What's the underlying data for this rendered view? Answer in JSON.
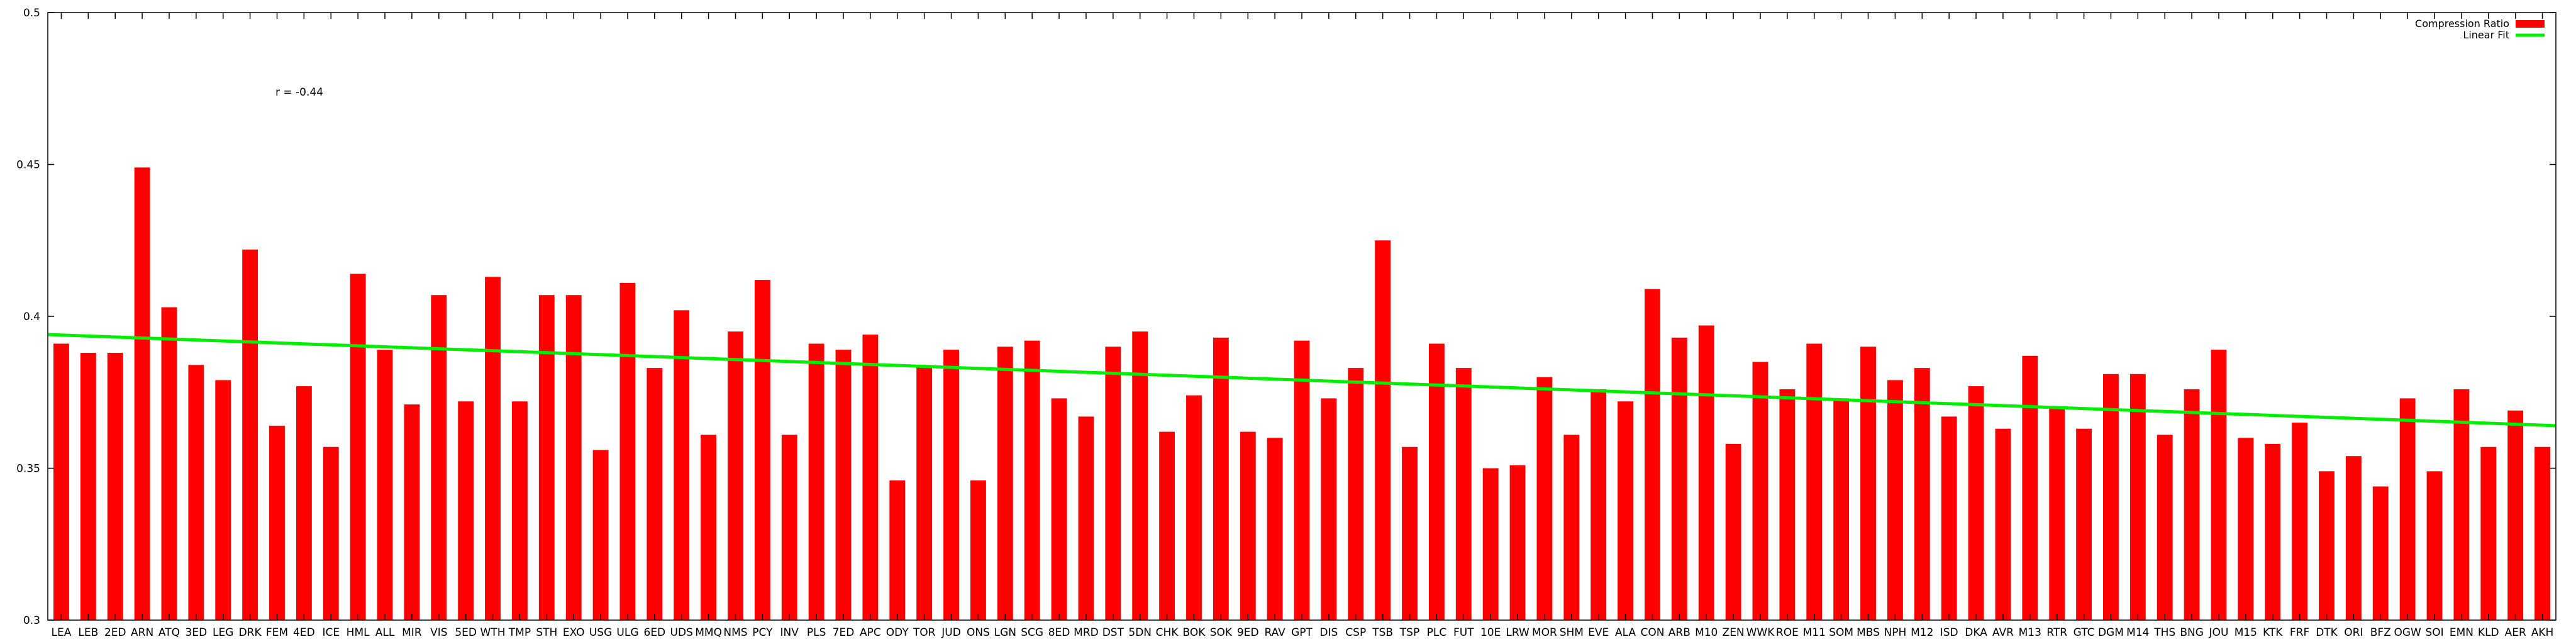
{
  "chart_data": {
    "type": "bar",
    "categories": [
      "LEA",
      "LEB",
      "2ED",
      "ARN",
      "ATQ",
      "3ED",
      "LEG",
      "DRK",
      "FEM",
      "4ED",
      "ICE",
      "HML",
      "ALL",
      "MIR",
      "VIS",
      "5ED",
      "WTH",
      "TMP",
      "STH",
      "EXO",
      "USG",
      "ULG",
      "6ED",
      "UDS",
      "MMQ",
      "NMS",
      "PCY",
      "INV",
      "PLS",
      "7ED",
      "APC",
      "ODY",
      "TOR",
      "JUD",
      "ONS",
      "LGN",
      "SCG",
      "8ED",
      "MRD",
      "DST",
      "5DN",
      "CHK",
      "BOK",
      "SOK",
      "9ED",
      "RAV",
      "GPT",
      "DIS",
      "CSP",
      "TSB",
      "TSP",
      "PLC",
      "FUT",
      "10E",
      "LRW",
      "MOR",
      "SHM",
      "EVE",
      "ALA",
      "CON",
      "ARB",
      "M10",
      "ZEN",
      "WWK",
      "ROE",
      "M11",
      "SOM",
      "MBS",
      "NPH",
      "M12",
      "ISD",
      "DKA",
      "AVR",
      "M13",
      "RTR",
      "GTC",
      "DGM",
      "M14",
      "THS",
      "BNG",
      "JOU",
      "M15",
      "KTK",
      "FRF",
      "DTK",
      "ORI",
      "BFZ",
      "OGW",
      "SOI",
      "EMN",
      "KLD",
      "AER",
      "AKH"
    ],
    "series": [
      {
        "name": "Compression Ratio",
        "color": "#ff0000",
        "values": [
          0.391,
          0.388,
          0.388,
          0.449,
          0.403,
          0.384,
          0.379,
          0.422,
          0.364,
          0.377,
          0.357,
          0.414,
          0.389,
          0.371,
          0.407,
          0.372,
          0.413,
          0.372,
          0.407,
          0.407,
          0.356,
          0.411,
          0.383,
          0.402,
          0.361,
          0.395,
          0.412,
          0.361,
          0.391,
          0.389,
          0.394,
          0.346,
          0.384,
          0.389,
          0.346,
          0.39,
          0.392,
          0.373,
          0.367,
          0.39,
          0.395,
          0.362,
          0.374,
          0.393,
          0.362,
          0.36,
          0.392,
          0.373,
          0.383,
          0.425,
          0.357,
          0.391,
          0.383,
          0.35,
          0.351,
          0.38,
          0.361,
          0.376,
          0.372,
          0.409,
          0.393,
          0.397,
          0.358,
          0.385,
          0.376,
          0.391,
          0.373,
          0.39,
          0.379,
          0.383,
          0.367,
          0.377,
          0.363,
          0.387,
          0.37,
          0.363,
          0.381,
          0.381,
          0.361,
          0.376,
          0.389,
          0.36,
          0.358,
          0.365,
          0.349,
          0.354,
          0.344,
          0.373,
          0.349,
          0.376,
          0.357,
          0.369,
          0.357
        ]
      },
      {
        "name": "Linear Fit",
        "color": "#00ee00",
        "type": "line",
        "start": 0.394,
        "end": 0.364
      }
    ],
    "ylim": [
      0.3,
      0.5
    ],
    "yticks": [
      "0.3",
      "0.35",
      "0.4",
      "0.45",
      "0.5"
    ],
    "annotation": "r = -0.44",
    "legend_position": "top-right",
    "grid": false
  }
}
